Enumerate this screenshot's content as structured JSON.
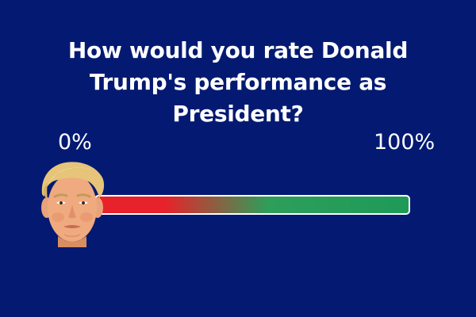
{
  "poll": {
    "question": "How would you rate Donald Trump's performance as President?",
    "scale_min_label": "0%",
    "scale_max_label": "100%",
    "value_percent": 100
  },
  "colors": {
    "background": "#041a72",
    "text": "#ffffff",
    "bar_start": "#e8222a",
    "bar_mid": "#2e9e5a",
    "bar_end": "#1e9a58",
    "bar_border": "#ffffff"
  },
  "icons": {
    "slider_handle": "face-portrait-icon"
  }
}
